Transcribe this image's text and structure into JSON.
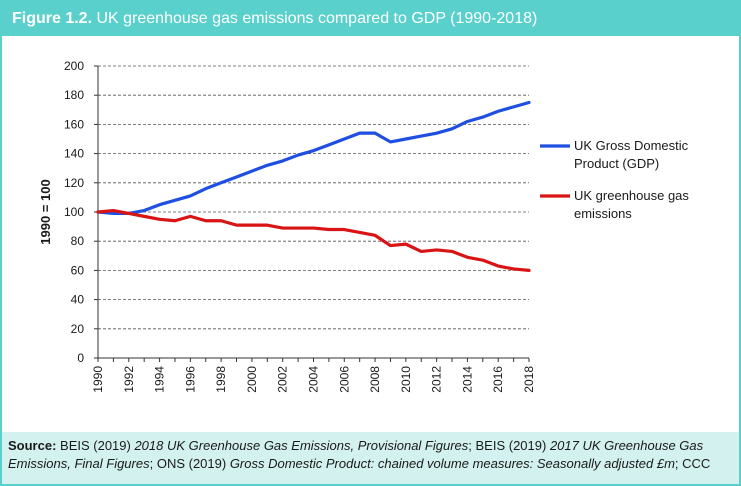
{
  "figure": {
    "label": "Figure 1.2.",
    "title": "UK greenhouse gas emissions compared to GDP (1990-2018)"
  },
  "source": {
    "label": "Source:",
    "p1": " BEIS (2019) ",
    "i1": "2018 UK Greenhouse Gas Emissions, Provisional Figures",
    "p2": "; BEIS (2019) ",
    "i2": "2017 UK Greenhouse Gas Emissions, Final Figures",
    "p3": "; ONS (2019) ",
    "i3": "Gross Domestic Product: chained volume measures: Seasonally adjusted £m",
    "p4": "; CCC"
  },
  "chart_data": {
    "type": "line",
    "title": "UK greenhouse gas emissions compared to GDP (1990-2018)",
    "xlabel": "",
    "ylabel": "1990 = 100",
    "ylim": [
      0,
      200
    ],
    "xlim": [
      1990,
      2018
    ],
    "yticks": [
      "0",
      "20",
      "40",
      "60",
      "80",
      "100",
      "120",
      "140",
      "160",
      "180",
      "200"
    ],
    "xticks": [
      "1990",
      "1992",
      "1994",
      "1996",
      "1998",
      "2000",
      "2002",
      "2004",
      "2006",
      "2008",
      "2010",
      "2012",
      "2014",
      "2016",
      "2018"
    ],
    "grid": "horizontal dashed",
    "legend_position": "right",
    "x": [
      1990,
      1991,
      1992,
      1993,
      1994,
      1995,
      1996,
      1997,
      1998,
      1999,
      2000,
      2001,
      2002,
      2003,
      2004,
      2005,
      2006,
      2007,
      2008,
      2009,
      2010,
      2011,
      2012,
      2013,
      2014,
      2015,
      2016,
      2017,
      2018
    ],
    "series": [
      {
        "name": "UK Gross Domestic Product (GDP)",
        "color": "#1f4fe0",
        "legend_lines": [
          "UK Gross Domestic",
          "Product (GDP)"
        ],
        "values": [
          100,
          99,
          99,
          101,
          105,
          108,
          111,
          116,
          120,
          124,
          128,
          132,
          135,
          139,
          142,
          146,
          150,
          154,
          154,
          148,
          150,
          152,
          154,
          157,
          162,
          165,
          169,
          172,
          175
        ]
      },
      {
        "name": "UK greenhouse gas emissions",
        "color": "#d81414",
        "legend_lines": [
          "UK greenhouse gas",
          "emissions"
        ],
        "values": [
          100,
          101,
          99,
          97,
          95,
          94,
          97,
          94,
          94,
          91,
          91,
          91,
          89,
          89,
          89,
          88,
          88,
          86,
          84,
          77,
          78,
          73,
          74,
          73,
          69,
          67,
          63,
          61,
          60
        ]
      }
    ]
  }
}
